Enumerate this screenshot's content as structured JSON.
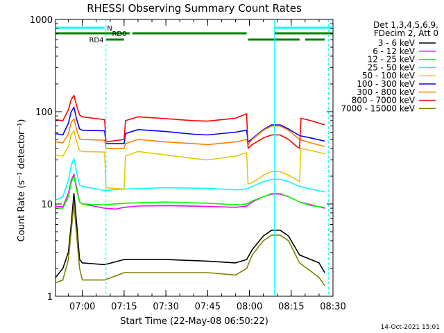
{
  "chart_data": {
    "type": "line",
    "title": "RHESSI Observing Summary Count Rates",
    "xlabel": "Start Time (22-May-08 06:50:22)",
    "ylabel": "Count Rate (s⁻¹ detector⁻¹)",
    "xscale": "time",
    "yscale": "log",
    "xlim": [
      "06:50:22",
      "08:30:00"
    ],
    "ylim": [
      1,
      1000
    ],
    "x_ticks": [
      "07:00",
      "07:15",
      "07:30",
      "07:45",
      "08:00",
      "08:15",
      "08:30"
    ],
    "y_ticks": [
      "1",
      "10",
      "100",
      "1000"
    ],
    "grid": false,
    "legend_position": "right",
    "legend_header": [
      "Det 1,3,4,5,6,9,",
      "FDecim 2, Att 0"
    ],
    "footer_date": "14-Oct-2021 15:01",
    "series": [
      {
        "name": "3 - 6 keV",
        "color": "#000000",
        "points": [
          [
            "06:50:22",
            1.6
          ],
          [
            "06:53",
            2.0
          ],
          [
            "06:55",
            3.0
          ],
          [
            "06:56",
            6.0
          ],
          [
            "06:57",
            13.0
          ],
          [
            "06:58",
            6.0
          ],
          [
            "06:59",
            2.5
          ],
          [
            "07:00",
            2.3
          ],
          [
            "07:08",
            2.2
          ],
          [
            "07:15",
            2.5
          ],
          [
            "07:30",
            2.5
          ],
          [
            "07:45",
            2.4
          ],
          [
            "07:55",
            2.3
          ],
          [
            "07:59",
            2.5
          ],
          [
            "08:01",
            3.2
          ],
          [
            "08:05",
            4.5
          ],
          [
            "08:08",
            5.2
          ],
          [
            "08:11",
            5.2
          ],
          [
            "08:14",
            4.5
          ],
          [
            "08:18",
            2.8
          ],
          [
            "08:25",
            2.3
          ],
          [
            "08:27",
            1.8
          ]
        ]
      },
      {
        "name": "6 - 12 keV",
        "color": "#ff00ff",
        "points": [
          [
            "06:50:22",
            9.5
          ],
          [
            "06:53",
            9.3
          ],
          [
            "06:55",
            13
          ],
          [
            "06:56",
            18
          ],
          [
            "06:57",
            21
          ],
          [
            "06:58",
            15
          ],
          [
            "06:59",
            10.5
          ],
          [
            "07:00",
            10
          ],
          [
            "07:08",
            9.0
          ],
          [
            "07:12",
            8.8
          ],
          [
            "07:15",
            9.2
          ],
          [
            "07:20",
            9.5
          ],
          [
            "07:30",
            9.6
          ],
          [
            "07:45",
            9.4
          ],
          [
            "07:55",
            9.2
          ],
          [
            "07:59",
            9.5
          ],
          [
            "08:01",
            10.5
          ],
          [
            "08:05",
            12
          ],
          [
            "08:08",
            12.8
          ],
          [
            "08:11",
            12.8
          ],
          [
            "08:14",
            12
          ],
          [
            "08:18",
            10.5
          ],
          [
            "08:22",
            9.8
          ],
          [
            "08:27",
            9.0
          ]
        ]
      },
      {
        "name": "12 - 25 keV",
        "color": "#00ff00",
        "points": [
          [
            "06:50:22",
            9.0
          ],
          [
            "06:53",
            9.0
          ],
          [
            "06:55",
            12
          ],
          [
            "06:56",
            17
          ],
          [
            "06:57",
            20
          ],
          [
            "06:58",
            14
          ],
          [
            "06:59",
            10.5
          ],
          [
            "07:00",
            10
          ],
          [
            "07:08",
            9.8
          ],
          [
            "07:15",
            10.2
          ],
          [
            "07:30",
            10.5
          ],
          [
            "07:45",
            10.2
          ],
          [
            "07:55",
            9.8
          ],
          [
            "07:59",
            10
          ],
          [
            "08:01",
            10.8
          ],
          [
            "08:05",
            12
          ],
          [
            "08:08",
            13
          ],
          [
            "08:11",
            13
          ],
          [
            "08:14",
            12
          ],
          [
            "08:18",
            10.5
          ],
          [
            "08:22",
            9.6
          ],
          [
            "08:27",
            9.2
          ]
        ]
      },
      {
        "name": "25 - 50 keV",
        "color": "#00ffff",
        "points": [
          [
            "06:50:22",
            11
          ],
          [
            "06:53",
            12
          ],
          [
            "06:55",
            18
          ],
          [
            "06:56",
            26
          ],
          [
            "06:57",
            31
          ],
          [
            "06:58",
            22
          ],
          [
            "06:59",
            16
          ],
          [
            "07:00",
            15.5
          ],
          [
            "07:08",
            14
          ],
          [
            "07:15",
            14.5
          ],
          [
            "07:30",
            15
          ],
          [
            "07:45",
            14.8
          ],
          [
            "07:55",
            14.2
          ],
          [
            "07:59",
            14.5
          ],
          [
            "08:01",
            15.5
          ],
          [
            "08:05",
            17.5
          ],
          [
            "08:08",
            18.5
          ],
          [
            "08:11",
            18.5
          ],
          [
            "08:14",
            17.5
          ],
          [
            "08:18",
            15.5
          ],
          [
            "08:22",
            14.5
          ],
          [
            "08:27",
            13.5
          ]
        ]
      },
      {
        "name": "50 - 100 keV",
        "color": "#e6c800",
        "points": [
          [
            "06:50:22",
            34
          ],
          [
            "06:53",
            33
          ],
          [
            "06:55",
            42
          ],
          [
            "06:56",
            56
          ],
          [
            "06:57",
            62
          ],
          [
            "06:58",
            47
          ],
          [
            "06:59",
            38
          ],
          [
            "07:00",
            37
          ],
          [
            "07:08",
            36.5
          ],
          [
            "07:08:30",
            15
          ],
          [
            "07:15",
            14.5
          ],
          [
            "07:15:30",
            33
          ],
          [
            "07:20",
            37
          ],
          [
            "07:30",
            34
          ],
          [
            "07:40",
            31
          ],
          [
            "07:45",
            30
          ],
          [
            "07:55",
            33
          ],
          [
            "07:59",
            36
          ],
          [
            "07:59:30",
            16.5
          ],
          [
            "08:01",
            17
          ],
          [
            "08:05",
            20.5
          ],
          [
            "08:08",
            22.5
          ],
          [
            "08:11",
            22.5
          ],
          [
            "08:14",
            20.5
          ],
          [
            "08:18",
            17.5
          ],
          [
            "08:18:30",
            40
          ],
          [
            "08:22",
            38
          ],
          [
            "08:27",
            35
          ]
        ]
      },
      {
        "name": "100 - 300 keV",
        "color": "#0000ff",
        "points": [
          [
            "06:50:22",
            58
          ],
          [
            "06:53",
            56
          ],
          [
            "06:55",
            75
          ],
          [
            "06:56",
            100
          ],
          [
            "06:57",
            112
          ],
          [
            "06:58",
            82
          ],
          [
            "06:59",
            65
          ],
          [
            "07:00",
            63
          ],
          [
            "07:08",
            62
          ],
          [
            "07:08:30",
            45
          ],
          [
            "07:15",
            45
          ],
          [
            "07:15:30",
            58
          ],
          [
            "07:20",
            64
          ],
          [
            "07:30",
            61
          ],
          [
            "07:40",
            57
          ],
          [
            "07:45",
            56
          ],
          [
            "07:55",
            60
          ],
          [
            "07:59",
            63
          ],
          [
            "07:59:30",
            47
          ],
          [
            "08:01",
            51
          ],
          [
            "08:05",
            64
          ],
          [
            "08:08",
            72
          ],
          [
            "08:11",
            72
          ],
          [
            "08:14",
            65
          ],
          [
            "08:18",
            55
          ],
          [
            "08:22",
            52
          ],
          [
            "08:27",
            48
          ]
        ]
      },
      {
        "name": "300 - 800 keV",
        "color": "#ff8000",
        "points": [
          [
            "06:50:22",
            47
          ],
          [
            "06:53",
            46
          ],
          [
            "06:55",
            58
          ],
          [
            "06:56",
            76
          ],
          [
            "06:57",
            84
          ],
          [
            "06:58",
            63
          ],
          [
            "06:59",
            51
          ],
          [
            "07:00",
            50
          ],
          [
            "07:08",
            49
          ],
          [
            "07:08:30",
            40
          ],
          [
            "07:15",
            40
          ],
          [
            "07:15:30",
            45
          ],
          [
            "07:20",
            50
          ],
          [
            "07:30",
            47
          ],
          [
            "07:40",
            45
          ],
          [
            "07:45",
            44
          ],
          [
            "07:55",
            47
          ],
          [
            "07:59",
            50
          ],
          [
            "07:59:30",
            44
          ],
          [
            "08:01",
            50
          ],
          [
            "08:05",
            63
          ],
          [
            "08:08",
            70
          ],
          [
            "08:11",
            70
          ],
          [
            "08:14",
            63
          ],
          [
            "08:18",
            50
          ],
          [
            "08:22",
            46
          ],
          [
            "08:27",
            42
          ]
        ]
      },
      {
        "name": "800 - 7000 keV",
        "color": "#ff0000",
        "points": [
          [
            "06:50:22",
            82
          ],
          [
            "06:53",
            80
          ],
          [
            "06:55",
            105
          ],
          [
            "06:56",
            135
          ],
          [
            "06:57",
            150
          ],
          [
            "06:58",
            115
          ],
          [
            "06:59",
            92
          ],
          [
            "07:00",
            88
          ],
          [
            "07:08",
            82
          ],
          [
            "07:08:30",
            47
          ],
          [
            "07:15",
            50
          ],
          [
            "07:15:30",
            80
          ],
          [
            "07:20",
            88
          ],
          [
            "07:30",
            84
          ],
          [
            "07:40",
            80
          ],
          [
            "07:45",
            79
          ],
          [
            "07:55",
            85
          ],
          [
            "07:59",
            95
          ],
          [
            "07:59:30",
            40
          ],
          [
            "08:01",
            44
          ],
          [
            "08:05",
            52
          ],
          [
            "08:08",
            56
          ],
          [
            "08:11",
            56
          ],
          [
            "08:14",
            50
          ],
          [
            "08:17",
            42
          ],
          [
            "08:18",
            40
          ],
          [
            "08:18:30",
            85
          ],
          [
            "08:22",
            80
          ],
          [
            "08:27",
            72
          ]
        ]
      },
      {
        "name": "7000 - 15000 keV",
        "color": "#808000",
        "points": [
          [
            "06:50:22",
            1.4
          ],
          [
            "06:53",
            1.5
          ],
          [
            "06:55",
            2.5
          ],
          [
            "06:56",
            5.0
          ],
          [
            "06:57",
            10.0
          ],
          [
            "06:58",
            4.5
          ],
          [
            "06:59",
            2.0
          ],
          [
            "07:00",
            1.5
          ],
          [
            "07:08",
            1.5
          ],
          [
            "07:15",
            1.8
          ],
          [
            "07:30",
            1.8
          ],
          [
            "07:45",
            1.8
          ],
          [
            "07:55",
            1.7
          ],
          [
            "07:59",
            2.0
          ],
          [
            "08:01",
            2.8
          ],
          [
            "08:05",
            4.0
          ],
          [
            "08:08",
            4.6
          ],
          [
            "08:11",
            4.6
          ],
          [
            "08:14",
            4.0
          ],
          [
            "08:18",
            2.3
          ],
          [
            "08:25",
            1.6
          ],
          [
            "08:27",
            1.3
          ]
        ]
      }
    ],
    "annotations": {
      "state_bars": [
        {
          "label": "N",
          "color": "#00ffff",
          "segments": [
            [
              "06:50:22",
              "07:08"
            ],
            [
              "08:09",
              "08:30"
            ]
          ]
        },
        {
          "label": "RD0",
          "color": "#008000",
          "segments": [
            [
              "06:50:22",
              "07:17"
            ],
            [
              "07:18",
              "07:59"
            ],
            [
              "08:09",
              "08:30"
            ]
          ]
        },
        {
          "label": "RD4",
          "color": "#008000",
          "segments": [
            [
              "07:08:30",
              "07:15"
            ],
            [
              "07:59:30",
              "08:18"
            ],
            [
              "08:20",
              "08:27"
            ]
          ]
        }
      ],
      "vertical_lines": [
        {
          "time": "07:08:30",
          "style": "dashed",
          "color": "#00ffff"
        },
        {
          "time": "08:09",
          "style": "solid",
          "color": "#00ffff"
        },
        {
          "time": "08:28:20",
          "style": "dashed",
          "color": "#00ffff"
        }
      ]
    }
  }
}
